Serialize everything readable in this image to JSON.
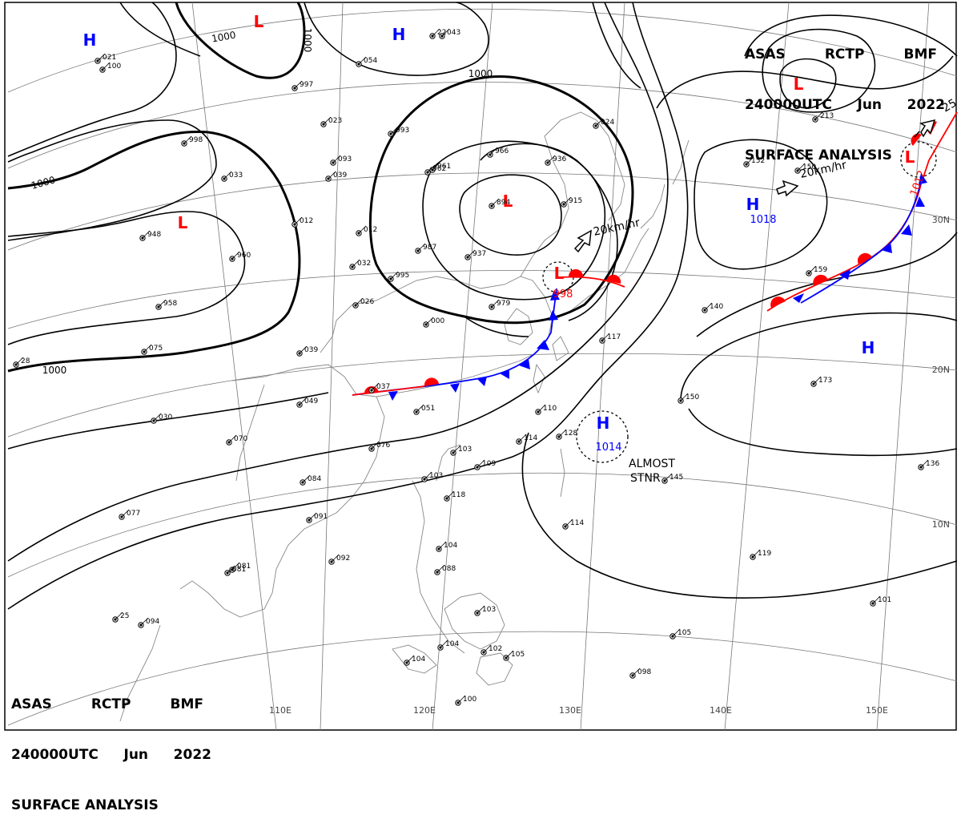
{
  "header": {
    "line1": [
      "ASAS",
      "RCTP",
      "BMF"
    ],
    "line2": [
      "240000UTC",
      "Jun",
      "2022"
    ],
    "line3": "SURFACE ANALYSIS"
  },
  "colors": {
    "high": "#0000ff",
    "low": "#ff0000",
    "isobar": "#000000",
    "graticule": "#666666"
  },
  "pressure_centers": [
    {
      "type": "H",
      "color": "blue"
    },
    {
      "type": "H",
      "color": "blue"
    },
    {
      "type": "L",
      "color": "red"
    },
    {
      "type": "L",
      "color": "red"
    },
    {
      "type": "L",
      "color": "red"
    },
    {
      "type": "L",
      "color": "red",
      "value": "998"
    },
    {
      "type": "H",
      "color": "blue",
      "value": "1018"
    },
    {
      "type": "L",
      "color": "red"
    },
    {
      "type": "L",
      "color": "red",
      "value": "1012"
    },
    {
      "type": "H",
      "color": "blue"
    },
    {
      "type": "H",
      "color": "blue",
      "value": "1014"
    }
  ],
  "isobar_labels": [
    "1000",
    "1000",
    "1000",
    "1000",
    "1000"
  ],
  "motion_labels": [
    "20km/hr",
    "20km/hr",
    "ALMOST",
    "STNR",
    "25"
  ],
  "lon_labels": [
    "110E",
    "120E",
    "130E",
    "140E",
    "150E"
  ],
  "lat_labels": [
    "30N",
    "20N",
    "10N"
  ],
  "stations": [
    {
      "t": "100"
    },
    {
      "t": "22"
    },
    {
      "t": "043"
    },
    {
      "t": "054"
    },
    {
      "t": "997"
    },
    {
      "t": "023"
    },
    {
      "t": "993"
    },
    {
      "t": "966"
    },
    {
      "t": "961"
    },
    {
      "t": "936"
    },
    {
      "t": "894"
    },
    {
      "t": "915"
    },
    {
      "t": "024"
    },
    {
      "t": "998"
    },
    {
      "t": "033"
    },
    {
      "t": "039"
    },
    {
      "t": "012"
    },
    {
      "t": "012"
    },
    {
      "t": "948"
    },
    {
      "t": "960"
    },
    {
      "t": "032"
    },
    {
      "t": "987"
    },
    {
      "t": "937"
    },
    {
      "t": "995"
    },
    {
      "t": "979"
    },
    {
      "t": "958"
    },
    {
      "t": "026"
    },
    {
      "t": "000"
    },
    {
      "t": "039"
    },
    {
      "t": "037"
    },
    {
      "t": "049"
    },
    {
      "t": "051"
    },
    {
      "t": "030"
    },
    {
      "t": "070"
    },
    {
      "t": "076"
    },
    {
      "t": "103"
    },
    {
      "t": "110"
    },
    {
      "t": "114"
    },
    {
      "t": "128"
    },
    {
      "t": "109"
    },
    {
      "t": "084"
    },
    {
      "t": "103"
    },
    {
      "t": "118"
    },
    {
      "t": "091"
    },
    {
      "t": "081"
    },
    {
      "t": "092"
    },
    {
      "t": "104"
    },
    {
      "t": "088"
    },
    {
      "t": "103"
    },
    {
      "t": "104"
    },
    {
      "t": "102"
    },
    {
      "t": "104"
    },
    {
      "t": "105"
    },
    {
      "t": "100"
    },
    {
      "t": "098"
    },
    {
      "t": "094"
    },
    {
      "t": "145"
    },
    {
      "t": "114"
    },
    {
      "t": "119"
    },
    {
      "t": "101"
    },
    {
      "t": "105"
    },
    {
      "t": "140"
    },
    {
      "t": "173"
    },
    {
      "t": "150"
    },
    {
      "t": "159"
    },
    {
      "t": "152"
    },
    {
      "t": "150"
    },
    {
      "t": "213"
    },
    {
      "t": "117"
    },
    {
      "t": "136"
    },
    {
      "t": "077"
    },
    {
      "t": "075"
    },
    {
      "t": "081"
    },
    {
      "t": "021"
    },
    {
      "t": "093"
    },
    {
      "t": "962"
    },
    {
      "t": "25"
    },
    {
      "t": "28"
    }
  ]
}
